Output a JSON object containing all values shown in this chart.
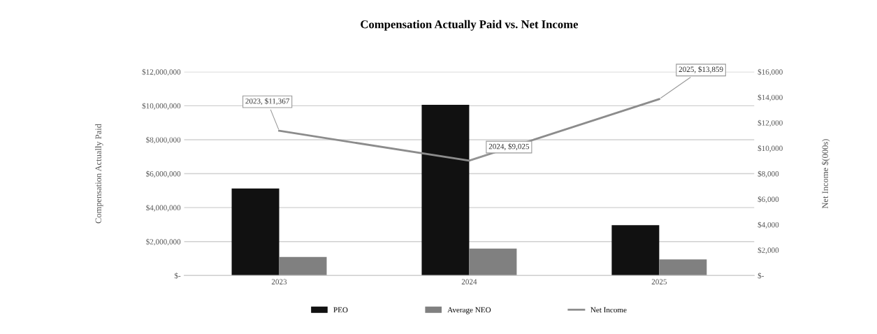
{
  "chart_data": {
    "type": "bar",
    "title": "Compensation Actually Paid vs. Net Income",
    "ylabel": "Compensation Actually Paid",
    "y2label": "Net Income $(000s)",
    "categories": [
      "2023",
      "2024",
      "2025"
    ],
    "series": [
      {
        "name": "PEO",
        "color": "#111111",
        "values": [
          5130000,
          10060000,
          2970000
        ]
      },
      {
        "name": "Average NEO",
        "color": "#808080",
        "values": [
          1090000,
          1590000,
          950000
        ]
      },
      {
        "name": "Net Income",
        "type": "line",
        "axis": "y2",
        "color": "#8c8c8c",
        "values": [
          11367,
          9025,
          13859
        ],
        "value_labels": [
          "2023, $11,367",
          "2024, $9,025",
          "2025, $13,859"
        ]
      }
    ],
    "ylim": [
      0,
      12000000
    ],
    "yticks": [
      {
        "value": 0,
        "label": "$-"
      },
      {
        "value": 2000000,
        "label": "$2,000,000"
      },
      {
        "value": 4000000,
        "label": "$4,000,000"
      },
      {
        "value": 6000000,
        "label": "$6,000,000"
      },
      {
        "value": 8000000,
        "label": "$8,000,000"
      },
      {
        "value": 10000000,
        "label": "$10,000,000"
      },
      {
        "value": 12000000,
        "label": "$12,000,000"
      }
    ],
    "y2lim": [
      0,
      16000
    ],
    "y2ticks": [
      {
        "value": 0,
        "label": "$-"
      },
      {
        "value": 2000,
        "label": "$2,000"
      },
      {
        "value": 4000,
        "label": "$4,000"
      },
      {
        "value": 6000,
        "label": "$6,000"
      },
      {
        "value": 8000,
        "label": "$8,000"
      },
      {
        "value": 10000,
        "label": "$10,000"
      },
      {
        "value": 12000,
        "label": "$12,000"
      },
      {
        "value": 14000,
        "label": "$14,000"
      },
      {
        "value": 16000,
        "label": "$16,000"
      }
    ],
    "grid": "y",
    "legend": "bottom",
    "marker": "none",
    "line_style": "solid"
  }
}
